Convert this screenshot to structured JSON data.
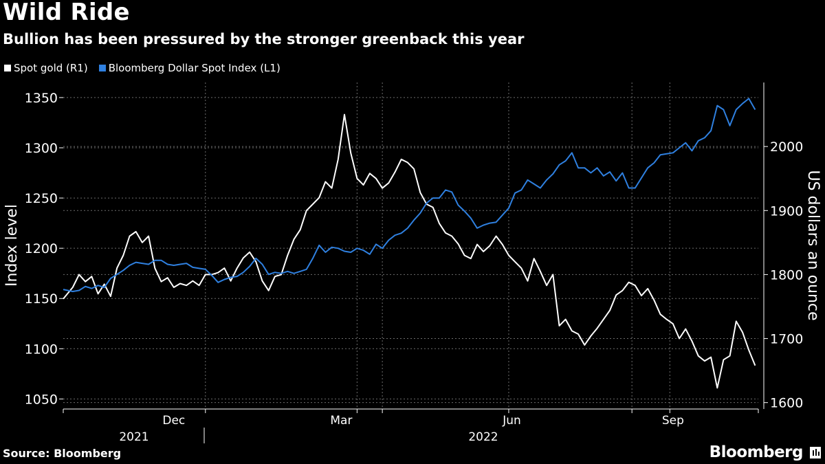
{
  "header": {
    "title": "Wild Ride",
    "subtitle": "Bullion has been pressured by the stronger greenback this year"
  },
  "footer": {
    "source": "Source: Bloomberg",
    "brand": "Bloomberg"
  },
  "colors": {
    "gold": "#ffffff",
    "dollar": "#2f80e0",
    "grid": "#6e6e6e",
    "background": "#000000"
  },
  "chart_data": {
    "type": "line",
    "title": "Wild Ride",
    "subtitle": "Bullion has been pressured by the stronger greenback this year",
    "legend": [
      "Spot gold (R1)",
      "Bloomberg Dollar Spot Index (L1)"
    ],
    "legend_placement": "top-left",
    "grid": true,
    "x_axis": {
      "tick_labels": [
        "Dec",
        "Mar",
        "Jun",
        "Sep"
      ],
      "year_labels": [
        "2021",
        "2022"
      ],
      "range_index": [
        0,
        220
      ]
    },
    "y_left": {
      "label": "Index level",
      "range": [
        1040,
        1365
      ],
      "ticks": [
        1050,
        1100,
        1150,
        1200,
        1250,
        1300,
        1350
      ]
    },
    "y_right": {
      "label": "US dollars an ounce",
      "range": [
        1590,
        2100
      ],
      "ticks": [
        1600,
        1700,
        1800,
        1900,
        2000
      ]
    },
    "series": [
      {
        "name": "Spot gold (R1)",
        "axis": "right",
        "x": [
          0,
          3,
          5,
          7,
          9,
          11,
          13,
          15,
          17,
          19,
          21,
          23,
          25,
          27,
          29,
          31,
          33,
          35,
          37,
          39,
          41,
          43,
          45,
          47,
          49,
          51,
          53,
          55,
          57,
          59,
          61,
          63,
          65,
          67,
          69,
          71,
          73,
          75,
          77,
          79,
          81,
          83,
          85,
          87,
          89,
          91,
          93,
          95,
          97,
          99,
          101,
          103,
          105,
          107,
          109,
          111,
          113,
          115,
          117,
          119,
          121,
          123,
          125,
          127,
          129,
          131,
          133,
          135,
          137,
          139,
          141,
          143,
          145,
          147,
          149,
          151,
          153,
          155,
          157,
          159,
          161,
          163,
          165,
          167,
          169,
          171,
          173,
          175,
          177,
          179,
          181,
          183,
          185,
          187,
          189,
          191,
          193,
          195,
          197,
          199,
          201,
          203,
          205,
          207,
          209,
          211,
          213,
          215,
          217,
          219
        ],
        "values": [
          1762,
          1780,
          1800,
          1789,
          1797,
          1770,
          1785,
          1766,
          1810,
          1830,
          1860,
          1867,
          1850,
          1860,
          1810,
          1789,
          1795,
          1780,
          1786,
          1783,
          1790,
          1783,
          1800,
          1800,
          1803,
          1810,
          1790,
          1810,
          1826,
          1835,
          1820,
          1790,
          1775,
          1797,
          1800,
          1830,
          1855,
          1870,
          1900,
          1910,
          1920,
          1945,
          1935,
          1980,
          2050,
          1990,
          1950,
          1940,
          1958,
          1950,
          1935,
          1943,
          1960,
          1980,
          1975,
          1965,
          1928,
          1910,
          1905,
          1880,
          1865,
          1860,
          1848,
          1830,
          1825,
          1847,
          1836,
          1845,
          1860,
          1847,
          1830,
          1820,
          1810,
          1790,
          1825,
          1805,
          1783,
          1800,
          1720,
          1730,
          1712,
          1707,
          1690,
          1704,
          1716,
          1730,
          1744,
          1768,
          1775,
          1788,
          1783,
          1767,
          1778,
          1760,
          1738,
          1730,
          1723,
          1700,
          1715,
          1696,
          1673,
          1665,
          1671,
          1623,
          1667,
          1673,
          1727,
          1710,
          1682,
          1658
        ]
      },
      {
        "name": "Bloomberg Dollar Spot Index (L1)",
        "axis": "left",
        "x": [
          0,
          3,
          5,
          7,
          9,
          11,
          13,
          15,
          17,
          19,
          21,
          23,
          25,
          27,
          29,
          31,
          33,
          35,
          37,
          39,
          41,
          43,
          45,
          47,
          49,
          51,
          53,
          55,
          57,
          59,
          61,
          63,
          65,
          67,
          69,
          71,
          73,
          75,
          77,
          79,
          81,
          83,
          85,
          87,
          89,
          91,
          93,
          95,
          97,
          99,
          101,
          103,
          105,
          107,
          109,
          111,
          113,
          115,
          117,
          119,
          121,
          123,
          125,
          127,
          129,
          131,
          133,
          135,
          137,
          139,
          141,
          143,
          145,
          147,
          149,
          151,
          153,
          155,
          157,
          159,
          161,
          163,
          165,
          167,
          169,
          171,
          173,
          175,
          177,
          179,
          181,
          183,
          185,
          187,
          189,
          191,
          193,
          195,
          197,
          199,
          201,
          203,
          205,
          207,
          209,
          211,
          213,
          215,
          217,
          219
        ],
        "values": [
          1159,
          1157,
          1158,
          1162,
          1160,
          1163,
          1161,
          1170,
          1174,
          1178,
          1183,
          1186,
          1185,
          1184,
          1188,
          1188,
          1184,
          1183,
          1184,
          1185,
          1181,
          1180,
          1179,
          1173,
          1166,
          1169,
          1171,
          1172,
          1176,
          1182,
          1190,
          1184,
          1174,
          1176,
          1175,
          1177,
          1175,
          1177,
          1179,
          1190,
          1203,
          1196,
          1201,
          1200,
          1197,
          1196,
          1200,
          1198,
          1194,
          1204,
          1200,
          1208,
          1213,
          1215,
          1220,
          1228,
          1235,
          1245,
          1250,
          1250,
          1258,
          1256,
          1243,
          1237,
          1230,
          1220,
          1223,
          1225,
          1226,
          1233,
          1240,
          1255,
          1258,
          1268,
          1264,
          1260,
          1268,
          1274,
          1283,
          1287,
          1295,
          1280,
          1280,
          1275,
          1280,
          1272,
          1276,
          1267,
          1275,
          1260,
          1260,
          1270,
          1280,
          1285,
          1293,
          1294,
          1295,
          1300,
          1305,
          1297,
          1307,
          1310,
          1317,
          1342,
          1338,
          1322,
          1338,
          1344,
          1349,
          1338
        ]
      }
    ]
  }
}
